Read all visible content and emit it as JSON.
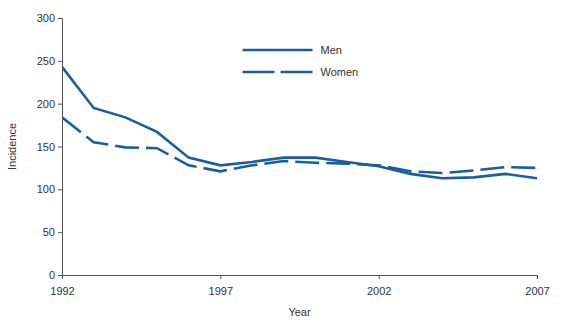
{
  "chart_data": {
    "type": "line",
    "x_label": "Year",
    "y_label": "Incidence",
    "x": [
      1992,
      1993,
      1994,
      1995,
      1996,
      1997,
      1998,
      1999,
      2000,
      2001,
      2002,
      2003,
      2004,
      2005,
      2006,
      2007
    ],
    "series": [
      {
        "name": "Men",
        "color": "#1b5e9e",
        "line_style": "solid",
        "values": [
          243,
          195,
          184,
          167,
          137,
          128,
          132,
          137,
          137,
          132,
          127,
          118,
          113,
          114,
          118,
          113
        ]
      },
      {
        "name": "Women",
        "color": "#1b5e9e",
        "line_style": "dashed",
        "values": [
          184,
          155,
          149,
          148,
          128,
          121,
          128,
          133,
          131,
          130,
          128,
          121,
          119,
          122,
          126,
          125
        ]
      }
    ],
    "xlim": [
      1992,
      2007
    ],
    "xticks": [
      1992,
      1997,
      2002,
      2007
    ],
    "ylim": [
      0,
      300
    ],
    "yticks": [
      0,
      50,
      100,
      150,
      200,
      250,
      300
    ],
    "grid": false,
    "legend": "top"
  }
}
